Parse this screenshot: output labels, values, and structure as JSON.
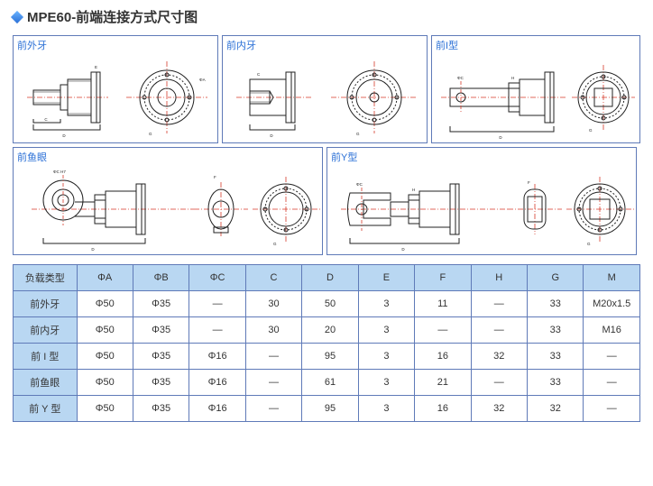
{
  "title": "MPE60-前端连接方式尺寸图",
  "panels": {
    "p1": "前外牙",
    "p2": "前内牙",
    "p3": "前I型",
    "p4": "前鱼眼",
    "p5": "前Y型"
  },
  "table": {
    "columns": [
      "负载类型",
      "ΦA",
      "ΦB",
      "ΦC",
      "C",
      "D",
      "E",
      "F",
      "H",
      "G",
      "M"
    ],
    "rows": [
      [
        "前外牙",
        "Φ50",
        "Φ35",
        "—",
        "30",
        "50",
        "3",
        "11",
        "—",
        "33",
        "M20x1.5"
      ],
      [
        "前内牙",
        "Φ50",
        "Φ35",
        "—",
        "30",
        "20",
        "3",
        "—",
        "—",
        "33",
        "M16"
      ],
      [
        "前 I 型",
        "Φ50",
        "Φ35",
        "Φ16",
        "—",
        "95",
        "3",
        "16",
        "32",
        "33",
        "—"
      ],
      [
        "前鱼眼",
        "Φ50",
        "Φ35",
        "Φ16",
        "—",
        "61",
        "3",
        "21",
        "—",
        "33",
        "—"
      ],
      [
        "前 Y 型",
        "Φ50",
        "Φ35",
        "Φ16",
        "—",
        "95",
        "3",
        "16",
        "32",
        "32",
        "—"
      ]
    ],
    "header_bg": "#b9d7f2",
    "rowlabel_bg": "#b9d7f2",
    "border_color": "#5f7ab8",
    "text_color": "#333333",
    "font_size": 11
  },
  "styling": {
    "accent_color": "#2a6fd6",
    "panel_border": "#5f7ab8",
    "centerline_color": "#d63a2a",
    "drawing_line_color": "#222222",
    "background": "#ffffff",
    "title_fontsize": 15,
    "panel_label_fontsize": 11,
    "panel_label_color": "#2a6fd6",
    "dim_labels": [
      "ΦA",
      "ΦB",
      "ΦC",
      "C",
      "D",
      "E",
      "F",
      "G",
      "H",
      "M"
    ]
  }
}
